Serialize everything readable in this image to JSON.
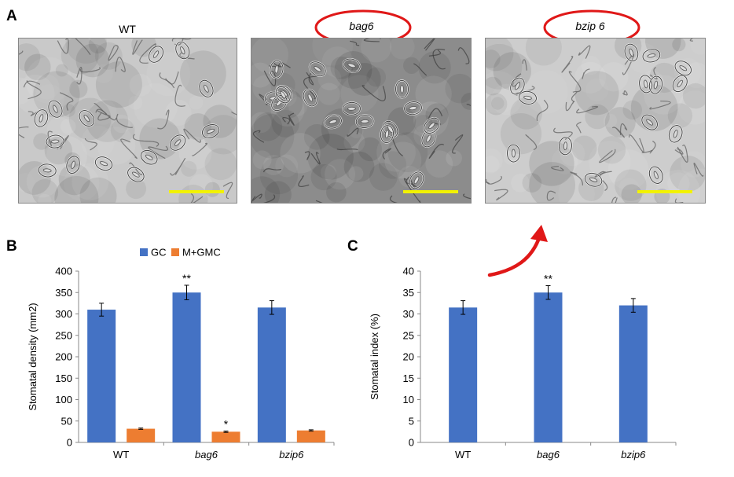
{
  "panelA": {
    "letter": "A",
    "images": [
      {
        "label": "WT",
        "italic": false,
        "circled": false
      },
      {
        "label": "bag6",
        "italic": true,
        "circled": true
      },
      {
        "label": "bzip 6",
        "italic": true,
        "circled": true
      }
    ],
    "scale_bar_color": "#f2f200",
    "circle_color": "#e01818"
  },
  "chart_data": [
    {
      "panel": "B",
      "type": "bar",
      "categories": [
        "WT",
        "bag6",
        "bzip6"
      ],
      "category_italic": [
        false,
        true,
        true
      ],
      "series": [
        {
          "name": "GC",
          "color": "#4472c4",
          "values": [
            310,
            350,
            315
          ],
          "errors": [
            15,
            17,
            16
          ],
          "annotations": [
            "",
            "**",
            ""
          ]
        },
        {
          "name": "M+GMC",
          "color": "#ed7d31",
          "values": [
            32,
            25,
            28
          ],
          "errors": [
            1.5,
            1.5,
            1.5
          ],
          "annotations": [
            "",
            "*",
            ""
          ]
        }
      ],
      "ylabel": "Stomatal density (mm2)",
      "ylim": [
        0,
        400
      ],
      "yticks": [
        0,
        50,
        100,
        150,
        200,
        250,
        300,
        350,
        400
      ],
      "legend": "top",
      "grid": false
    },
    {
      "panel": "C",
      "type": "bar",
      "categories": [
        "WT",
        "bag6",
        "bzip6"
      ],
      "category_italic": [
        false,
        true,
        true
      ],
      "series": [
        {
          "color": "#4472c4",
          "values": [
            31.5,
            35,
            32
          ],
          "errors": [
            1.6,
            1.6,
            1.6
          ],
          "annotations": [
            "",
            "**",
            ""
          ]
        }
      ],
      "ylabel": "Stomatal index (%)",
      "ylim": [
        0,
        40
      ],
      "yticks": [
        0,
        5,
        10,
        15,
        20,
        25,
        30,
        35,
        40
      ],
      "legend": "none",
      "grid": false
    }
  ],
  "arrow_color": "#e01818"
}
